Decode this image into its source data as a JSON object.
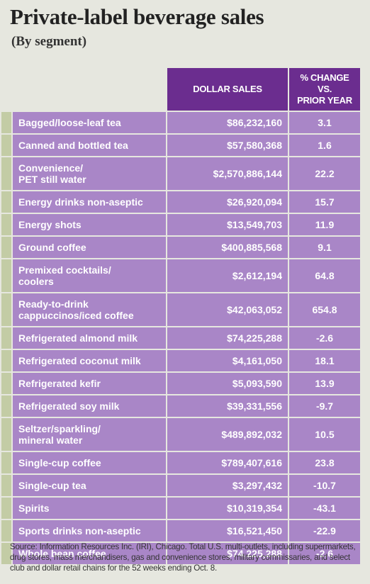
{
  "header": {
    "title": "Private-label beverage sales",
    "subtitle": "(By segment)"
  },
  "table": {
    "columns": [
      "DOLLAR SALES",
      "% CHANGE VS.\nPRIOR YEAR"
    ],
    "rows": [
      [
        "Bagged/loose-leaf tea",
        "$86,232,160",
        "3.1"
      ],
      [
        "Canned and bottled tea",
        "$57,580,368",
        "1.6"
      ],
      [
        "Convenience/\nPET still water",
        "$2,570,886,144",
        "22.2"
      ],
      [
        "Energy drinks non-aseptic",
        "$26,920,094",
        "15.7"
      ],
      [
        "Energy shots",
        "$13,549,703",
        "11.9"
      ],
      [
        "Ground coffee",
        "$400,885,568",
        "9.1"
      ],
      [
        "Premixed cocktails/\ncoolers",
        "$2,612,194",
        "64.8"
      ],
      [
        "Ready-to-drink\ncappuccinos/iced coffee",
        "$42,063,052",
        "654.8"
      ],
      [
        "Refrigerated almond milk",
        "$74,225,288",
        "-2.6"
      ],
      [
        "Refrigerated coconut milk",
        "$4,161,050",
        "18.1"
      ],
      [
        "Refrigerated kefir",
        "$5,093,590",
        "13.9"
      ],
      [
        "Refrigerated soy milk",
        "$39,331,556",
        "-9.7"
      ],
      [
        "Seltzer/sparkling/\nmineral water",
        "$489,892,032",
        "10.5"
      ],
      [
        "Single-cup coffee",
        "$789,407,616",
        "23.8"
      ],
      [
        "Single-cup tea",
        "$3,297,432",
        "-10.7"
      ],
      [
        "Spirits",
        "$10,319,354",
        "-43.1"
      ],
      [
        "Sports drinks non-aseptic",
        "$16,521,450",
        "-22.9"
      ],
      [
        "Whole bean coffee",
        "$74,225,288",
        "-2.6"
      ]
    ]
  },
  "source": "Source: Information Resources Inc. (IRI), Chicago. Total U.S. multi-outlets, including supermarkets, drug stores, mass merchandisers, gas and convenience stores, military commissaries, and select club and dollar retail chains for the 52 weeks ending Oct. 8."
}
